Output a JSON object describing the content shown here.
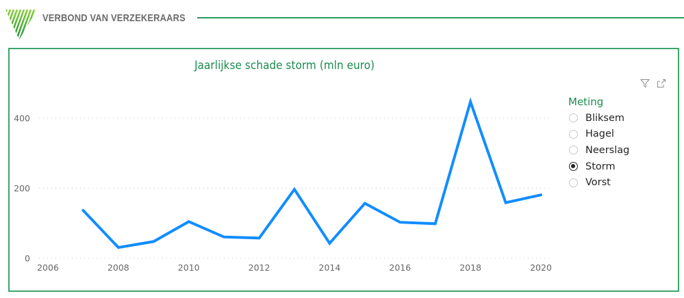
{
  "header": {
    "brand_name": "VERBOND VAN VERZEKERAARS",
    "logo_icon": "striped-triangle-logo-icon"
  },
  "visual_header": {
    "filter_icon": "filter-icon",
    "focus_mode_icon": "focus-mode-icon"
  },
  "colors": {
    "brand_green": "#1a8a4e",
    "border_green": "#3aa56a",
    "series_blue": "#118dff",
    "axis_text": "#666666",
    "grid": "#c8c8c8"
  },
  "legend": {
    "title": "Meting",
    "options": [
      {
        "label": "Bliksem",
        "selected": false
      },
      {
        "label": "Hagel",
        "selected": false
      },
      {
        "label": "Neerslag",
        "selected": false
      },
      {
        "label": "Storm",
        "selected": true
      },
      {
        "label": "Vorst",
        "selected": false
      }
    ]
  },
  "chart_data": {
    "type": "line",
    "title": "Jaarlijkse schade storm (mln euro)",
    "xlabel": "",
    "ylabel": "",
    "x": [
      2007,
      2008,
      2009,
      2010,
      2011,
      2012,
      2013,
      2014,
      2015,
      2016,
      2017,
      2018,
      2019,
      2020
    ],
    "series": [
      {
        "name": "Storm",
        "color": "#118dff",
        "values": [
          137,
          31,
          48,
          105,
          61,
          58,
          197,
          43,
          157,
          103,
          99,
          447,
          159,
          181
        ]
      }
    ],
    "x_ticks": [
      "2006",
      "2008",
      "2010",
      "2012",
      "2014",
      "2016",
      "2018",
      "2020"
    ],
    "y_ticks": [
      "0",
      "200",
      "400"
    ],
    "xlim": [
      2006,
      2020
    ],
    "ylim": [
      0,
      460
    ],
    "grid": "horizontal dotted",
    "legend_position": "right (slicer)"
  }
}
